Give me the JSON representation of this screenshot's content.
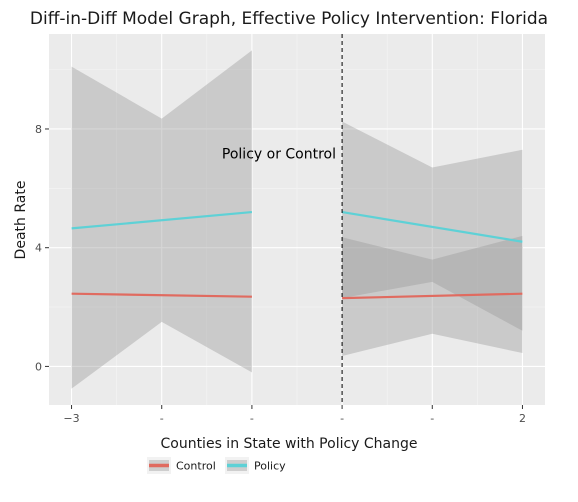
{
  "chart_data": {
    "type": "line",
    "title": "Diff-in-Diff Model Graph, Effective Policy Intervention: Florida",
    "xlabel": "Counties in State with Policy Change",
    "ylabel": "Death Rate",
    "xlim": [
      -3.25,
      2.25
    ],
    "ylim": [
      -1.3,
      11.2
    ],
    "x_ticks": [
      {
        "value": -3,
        "label": "−3"
      },
      {
        "value": -2,
        "label": "-"
      },
      {
        "value": -1,
        "label": "-"
      },
      {
        "value": 0,
        "label": "-"
      },
      {
        "value": 1,
        "label": "-"
      },
      {
        "value": 2,
        "label": "2"
      }
    ],
    "y_ticks": [
      {
        "value": 0,
        "label": "0"
      },
      {
        "value": 4,
        "label": "4"
      },
      {
        "value": 8,
        "label": "8"
      }
    ],
    "grid": true,
    "vline": {
      "x": 0,
      "style": "dashed"
    },
    "annotation": {
      "text": "Policy or Control",
      "x": -0.7,
      "y": 7.0
    },
    "legend": {
      "title": "Counties in State with Policy Change",
      "placement": "bottom"
    },
    "series": [
      {
        "name": "Control",
        "color": "#e06b60",
        "segments": [
          {
            "x": [
              -3,
              -1
            ],
            "y": [
              2.45,
              2.35
            ],
            "lower": [
              -0.75,
              -0.2
            ],
            "upper": [
              10.1,
              10.65
            ]
          },
          {
            "x": [
              0,
              2
            ],
            "y": [
              2.3,
              2.45
            ],
            "lower": [
              0.35,
              0.45
            ],
            "upper": [
              4.35,
              4.4
            ]
          }
        ]
      },
      {
        "name": "Policy",
        "color": "#5ed1d6",
        "segments": [
          {
            "x": [
              -3,
              -1
            ],
            "y": [
              4.65,
              5.2
            ],
            "lower": [
              1.5,
              1.5
            ],
            "upper": [
              8.35,
              8.35
            ]
          },
          {
            "x": [
              0,
              2
            ],
            "y": [
              5.2,
              4.2
            ],
            "lower": [
              2.3,
              1.2
            ],
            "upper": [
              8.25,
              7.3
            ]
          }
        ]
      }
    ],
    "bands": [
      {
        "x": [
          -3,
          -2,
          -1
        ],
        "lower": [
          -0.75,
          1.5,
          -0.2
        ],
        "upper": [
          10.1,
          8.35,
          10.65
        ]
      },
      {
        "x": [
          0,
          1,
          2
        ],
        "lower": [
          0.35,
          1.1,
          0.45
        ],
        "upper": [
          8.25,
          6.7,
          7.3
        ]
      },
      {
        "x": [
          0,
          1,
          2
        ],
        "lower": [
          2.3,
          2.85,
          1.2
        ],
        "upper": [
          4.35,
          3.6,
          4.4
        ]
      }
    ]
  }
}
